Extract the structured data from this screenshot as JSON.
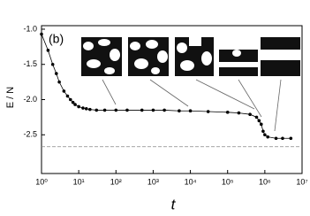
{
  "chart_data": {
    "type": "line",
    "annotation": "(b)",
    "ylabel": "E / N",
    "xlabel": "t",
    "xscale": "log",
    "xlim": [
      1,
      10000000
    ],
    "ylim": [
      -3.05,
      -0.95
    ],
    "xticks": [
      {
        "value": 1,
        "label": "10⁰"
      },
      {
        "value": 10,
        "label": "10¹"
      },
      {
        "value": 100,
        "label": "10²"
      },
      {
        "value": 1000,
        "label": "10³"
      },
      {
        "value": 10000,
        "label": "10⁴"
      },
      {
        "value": 100000,
        "label": "10⁵"
      },
      {
        "value": 1000000,
        "label": "10⁶"
      },
      {
        "value": 10000000,
        "label": "10⁷"
      }
    ],
    "yticks": [
      {
        "value": -1.0,
        "label": "-1.0"
      },
      -1.5,
      {
        "value": -2.0,
        "label": "-2.0"
      },
      -2.5
    ],
    "reference_line": -2.67,
    "series": [
      {
        "color": "#000000",
        "x": [
          1,
          1.5,
          2,
          2.5,
          3,
          4,
          5,
          6,
          7,
          8,
          10,
          13,
          16,
          20,
          30,
          50,
          100,
          200,
          500,
          1000,
          2000,
          5000,
          10000,
          30000,
          100000,
          200000,
          400000,
          600000,
          700000,
          800000,
          900000,
          1000000,
          1200000,
          2000000,
          3000000,
          5000000
        ],
        "values": [
          -1.07,
          -1.3,
          -1.5,
          -1.63,
          -1.75,
          -1.88,
          -1.95,
          -2.0,
          -2.04,
          -2.07,
          -2.1,
          -2.12,
          -2.13,
          -2.14,
          -2.15,
          -2.15,
          -2.15,
          -2.15,
          -2.15,
          -2.15,
          -2.15,
          -2.16,
          -2.16,
          -2.17,
          -2.18,
          -2.19,
          -2.21,
          -2.25,
          -2.3,
          -2.35,
          -2.45,
          -2.5,
          -2.53,
          -2.55,
          -2.55,
          -2.55
        ]
      }
    ]
  }
}
